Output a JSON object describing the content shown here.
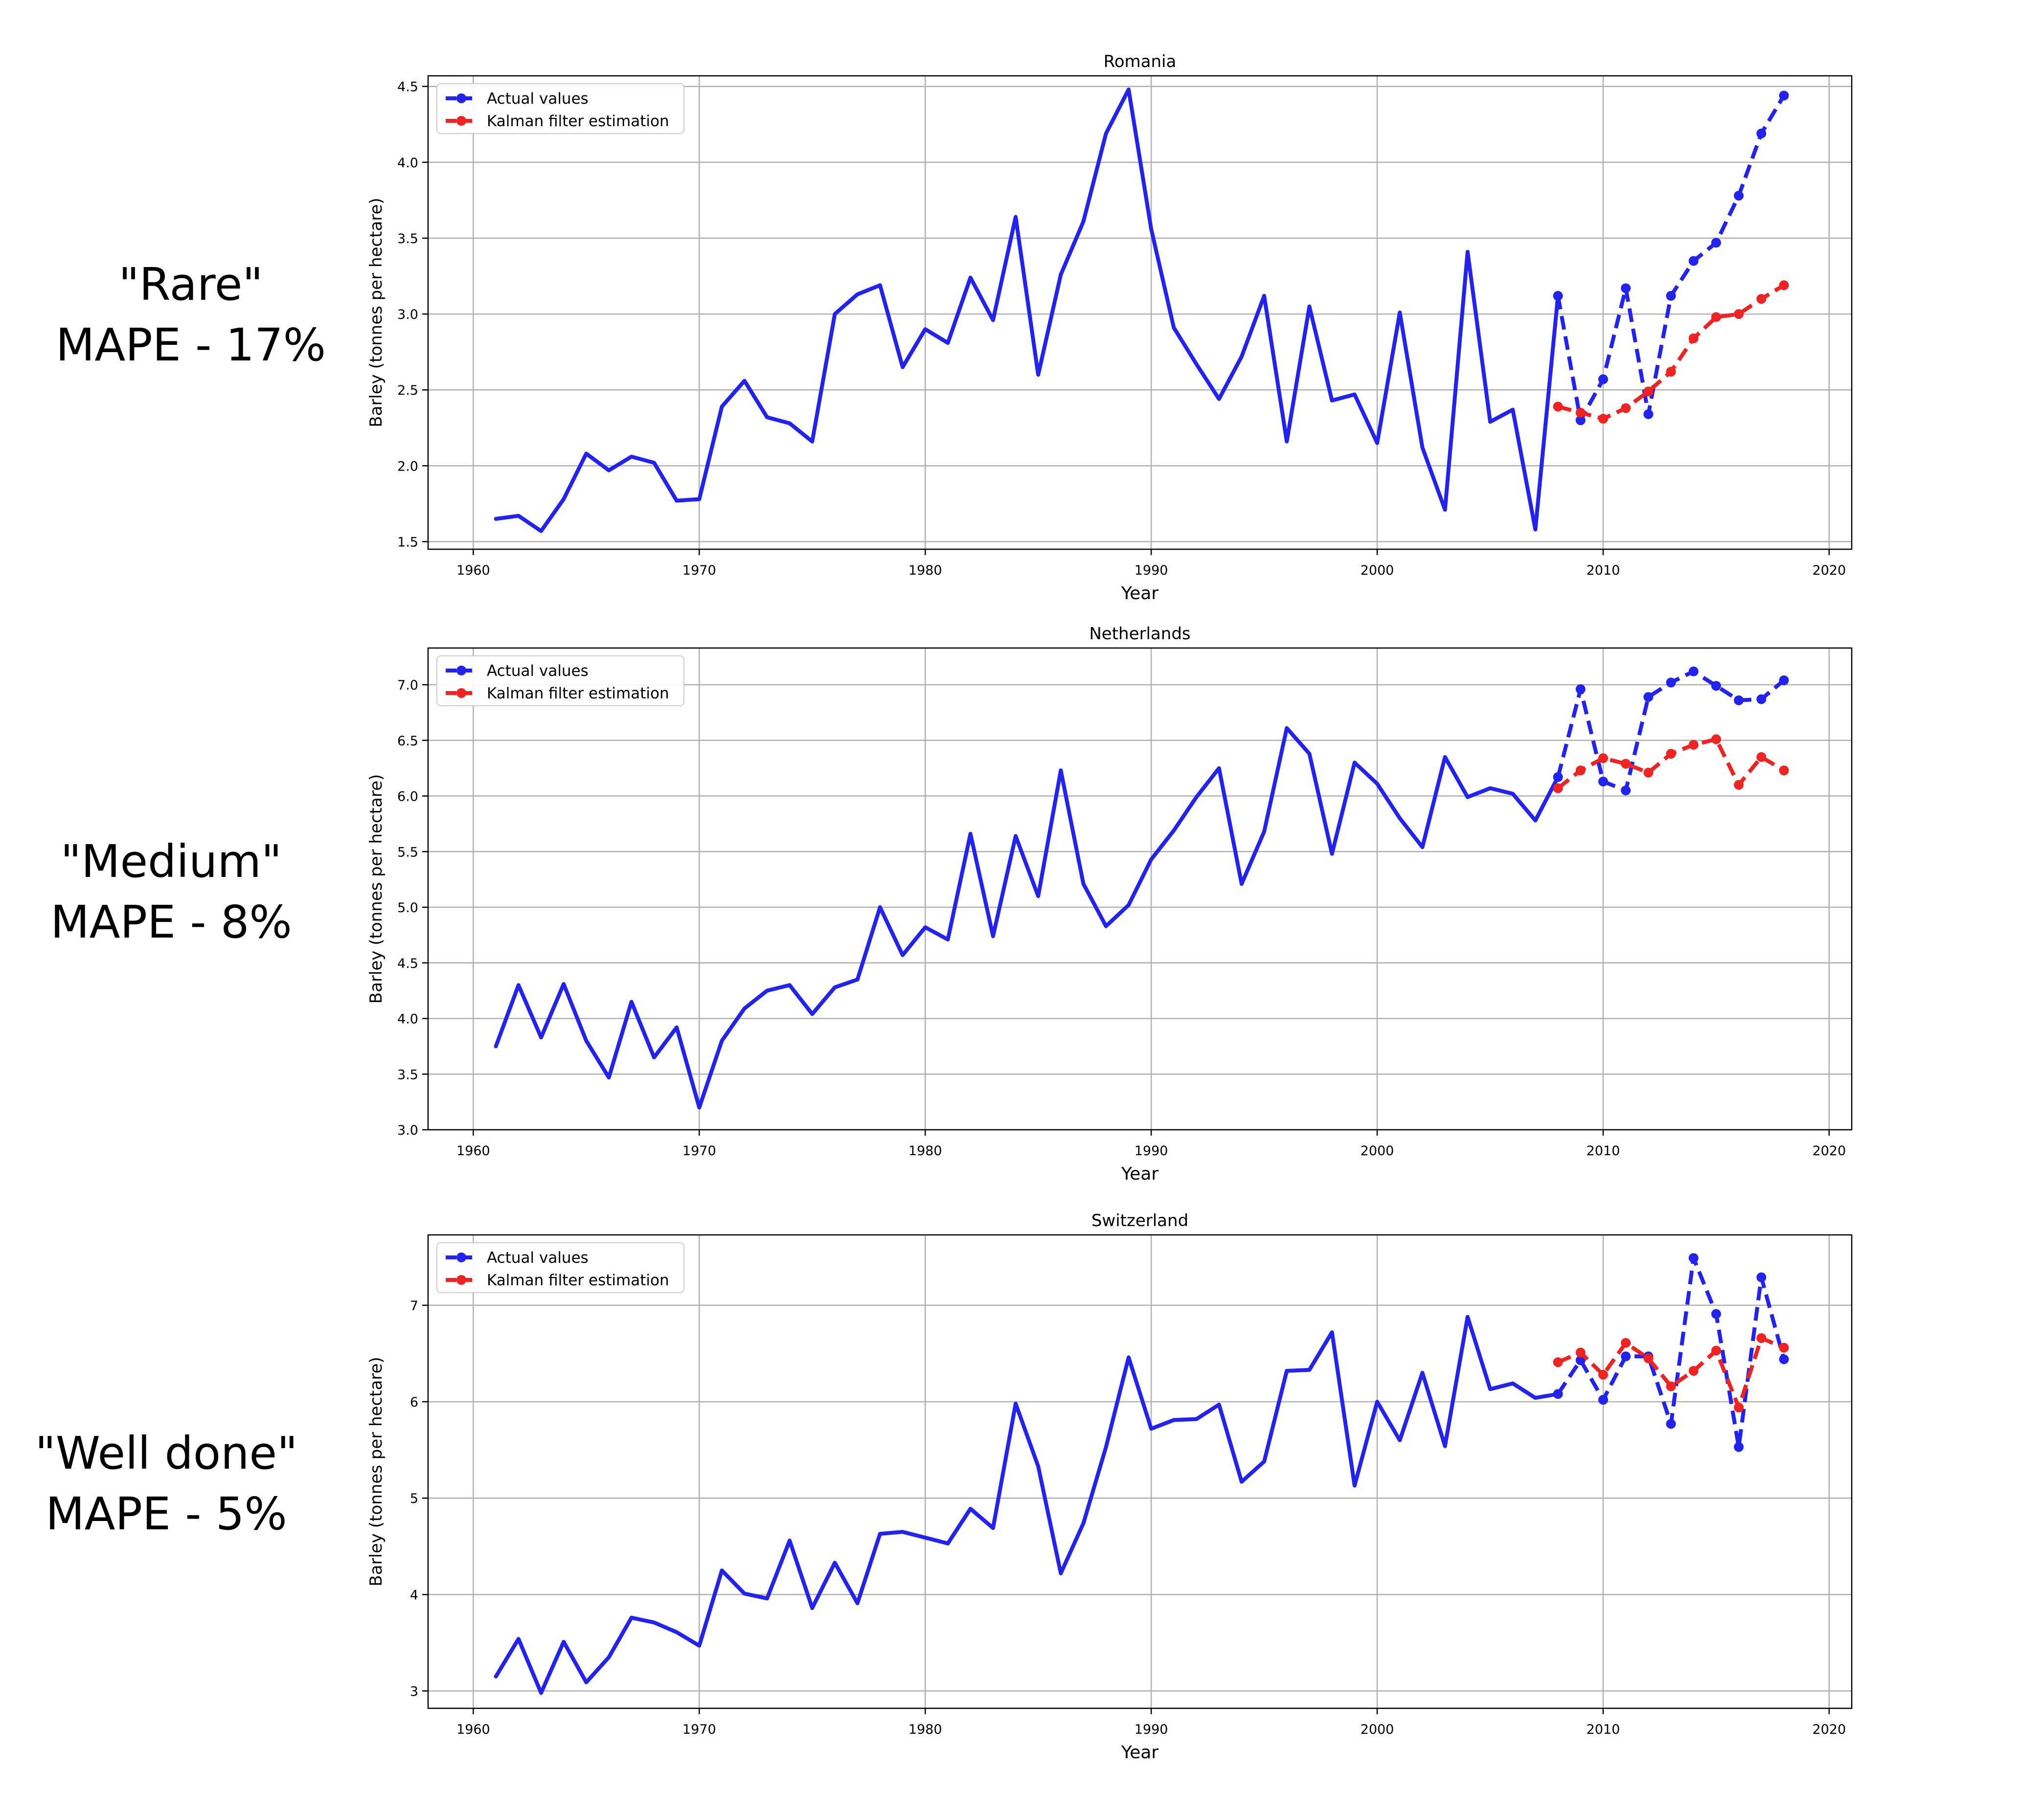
{
  "figure_labels": [
    {
      "quality": "\"Rare\"",
      "mape": "MAPE - 17%"
    },
    {
      "quality": "\"Medium\"",
      "mape": "MAPE - 8%"
    },
    {
      "quality": "\"Well done\"",
      "mape": "MAPE - 5%"
    }
  ],
  "colors": {
    "actual": "#2323f0",
    "kalman": "#f02323",
    "grid": "#b0b0b0"
  },
  "chart_data": [
    {
      "type": "line",
      "title": "Romania",
      "xlabel": "Year",
      "ylabel": "Barley (tonnes per hectare)",
      "xlim": [
        1958,
        2021
      ],
      "ylim": [
        1.45,
        4.57
      ],
      "xticks": [
        1960,
        1970,
        1980,
        1990,
        2000,
        2010,
        2020
      ],
      "yticks": [
        1.5,
        2.0,
        2.5,
        3.0,
        3.5,
        4.0,
        4.5
      ],
      "ytick_labels": [
        "1.5",
        "2.0",
        "2.5",
        "3.0",
        "3.5",
        "4.0",
        "4.5"
      ],
      "grid": true,
      "legend": "top-left",
      "history": {
        "x_start": 1961,
        "values": [
          1.65,
          1.67,
          1.57,
          1.78,
          2.08,
          1.97,
          2.06,
          2.02,
          1.77,
          1.78,
          2.39,
          2.56,
          2.32,
          2.28,
          2.16,
          3.0,
          3.13,
          3.19,
          2.65,
          2.9,
          2.81,
          3.24,
          2.96,
          3.64,
          2.6,
          3.26,
          3.61,
          4.19,
          4.48,
          3.56,
          2.91,
          2.67,
          2.44,
          2.72,
          3.12,
          2.16,
          3.05,
          2.43,
          2.47,
          2.15,
          3.01,
          2.12,
          1.71,
          3.41,
          2.29,
          2.37,
          1.58,
          3.12
        ]
      },
      "series": [
        {
          "name": "Actual values",
          "x": [
            2008,
            2009,
            2010,
            2011,
            2012,
            2013,
            2014,
            2015,
            2016,
            2017,
            2018
          ],
          "values": [
            3.12,
            2.3,
            2.57,
            3.17,
            2.34,
            3.12,
            3.35,
            3.47,
            3.78,
            4.19,
            4.44
          ]
        },
        {
          "name": "Kalman filter estimation",
          "x": [
            2008,
            2009,
            2010,
            2011,
            2012,
            2013,
            2014,
            2015,
            2016,
            2017,
            2018
          ],
          "values": [
            2.39,
            2.35,
            2.31,
            2.38,
            2.49,
            2.62,
            2.84,
            2.98,
            3.0,
            3.1,
            3.19
          ]
        }
      ]
    },
    {
      "type": "line",
      "title": "Netherlands",
      "xlabel": "Year",
      "ylabel": "Barley (tonnes per hectare)",
      "xlim": [
        1958,
        2021
      ],
      "ylim": [
        3.0,
        7.33
      ],
      "xticks": [
        1960,
        1970,
        1980,
        1990,
        2000,
        2010,
        2020
      ],
      "yticks": [
        3.0,
        3.5,
        4.0,
        4.5,
        5.0,
        5.5,
        6.0,
        6.5,
        7.0
      ],
      "ytick_labels": [
        "3.0",
        "3.5",
        "4.0",
        "4.5",
        "5.0",
        "5.5",
        "6.0",
        "6.5",
        "7.0"
      ],
      "grid": true,
      "legend": "top-left",
      "history": {
        "x_start": 1961,
        "values": [
          3.75,
          4.3,
          3.83,
          4.31,
          3.8,
          3.47,
          4.15,
          3.65,
          3.92,
          3.2,
          3.8,
          4.09,
          4.25,
          4.3,
          4.04,
          4.28,
          4.35,
          5.0,
          4.57,
          4.82,
          4.71,
          5.66,
          4.74,
          5.64,
          5.1,
          6.23,
          5.21,
          4.83,
          5.02,
          5.43,
          5.69,
          5.99,
          6.25,
          5.21,
          5.68,
          6.61,
          6.38,
          5.48,
          6.3,
          6.11,
          5.8,
          5.54,
          6.35,
          5.99,
          6.07,
          6.02,
          5.78,
          6.17
        ]
      },
      "series": [
        {
          "name": "Actual values",
          "x": [
            2008,
            2009,
            2010,
            2011,
            2012,
            2013,
            2014,
            2015,
            2016,
            2017,
            2018
          ],
          "values": [
            6.17,
            6.96,
            6.13,
            6.05,
            6.89,
            7.02,
            7.12,
            6.99,
            6.86,
            6.87,
            7.04
          ]
        },
        {
          "name": "Kalman filter estimation",
          "x": [
            2008,
            2009,
            2010,
            2011,
            2012,
            2013,
            2014,
            2015,
            2016,
            2017,
            2018
          ],
          "values": [
            6.07,
            6.23,
            6.34,
            6.29,
            6.21,
            6.38,
            6.46,
            6.51,
            6.1,
            6.35,
            6.23
          ]
        }
      ]
    },
    {
      "type": "line",
      "title": "Switzerland",
      "xlabel": "Year",
      "ylabel": "Barley (tonnes per hectare)",
      "xlim": [
        1958,
        2021
      ],
      "ylim": [
        2.82,
        7.73
      ],
      "xticks": [
        1960,
        1970,
        1980,
        1990,
        2000,
        2010,
        2020
      ],
      "yticks": [
        3,
        4,
        5,
        6,
        7
      ],
      "ytick_labels": [
        "3",
        "4",
        "5",
        "6",
        "7"
      ],
      "grid": true,
      "legend": "top-left",
      "history": {
        "x_start": 1961,
        "values": [
          3.15,
          3.54,
          2.98,
          3.51,
          3.09,
          3.35,
          3.76,
          3.71,
          3.61,
          3.47,
          4.25,
          4.01,
          3.96,
          4.56,
          3.86,
          4.33,
          3.91,
          4.63,
          4.65,
          4.59,
          4.53,
          4.89,
          4.69,
          5.98,
          5.33,
          4.22,
          4.74,
          5.53,
          6.46,
          5.72,
          5.81,
          5.82,
          5.97,
          5.17,
          5.38,
          6.32,
          6.33,
          6.72,
          5.13,
          6.0,
          5.6,
          6.3,
          5.54,
          6.88,
          6.13,
          6.19,
          6.04,
          6.08
        ]
      },
      "series": [
        {
          "name": "Actual values",
          "x": [
            2008,
            2009,
            2010,
            2011,
            2012,
            2013,
            2014,
            2015,
            2016,
            2017,
            2018
          ],
          "values": [
            6.08,
            6.43,
            6.02,
            6.47,
            6.47,
            5.77,
            7.49,
            6.91,
            5.53,
            7.29,
            6.44
          ]
        },
        {
          "name": "Kalman filter estimation",
          "x": [
            2008,
            2009,
            2010,
            2011,
            2012,
            2013,
            2014,
            2015,
            2016,
            2017,
            2018
          ],
          "values": [
            6.41,
            6.51,
            6.28,
            6.61,
            6.45,
            6.16,
            6.32,
            6.53,
            5.94,
            6.66,
            6.56
          ]
        }
      ]
    }
  ]
}
